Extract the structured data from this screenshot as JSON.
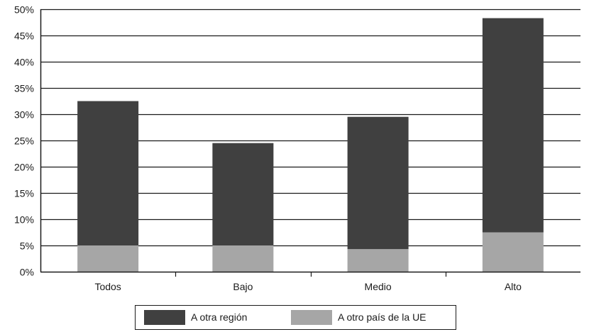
{
  "chart_data": {
    "type": "bar",
    "stacked": true,
    "categories": [
      "Todos",
      "Bajo",
      "Medio",
      "Alto"
    ],
    "series": [
      {
        "name": "A otro país de la UE",
        "values": [
          5,
          5,
          4.3,
          7.5
        ],
        "color": "#a6a6a6"
      },
      {
        "name": "A otra región",
        "values": [
          27.5,
          19.5,
          25.2,
          40.8
        ],
        "color": "#404040"
      }
    ],
    "ylim": [
      0,
      50
    ],
    "yticks": [
      0,
      5,
      10,
      15,
      20,
      25,
      30,
      35,
      40,
      45,
      50
    ],
    "ytick_labels": [
      "0%",
      "5%",
      "10%",
      "15%",
      "20%",
      "25%",
      "30%",
      "35%",
      "40%",
      "45%",
      "50%"
    ],
    "grid": true,
    "legend_placement": "bottom-center",
    "legend_order": [
      "A otra región",
      "A otro país de la UE"
    ]
  }
}
